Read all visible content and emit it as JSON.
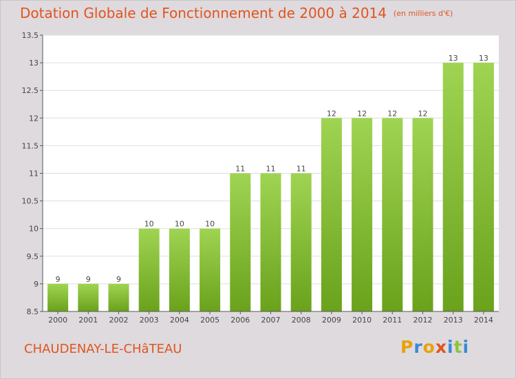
{
  "header": {
    "title": "Dotation Globale de Fonctionnement de 2000 à 2014",
    "unit": "(en milliers d'€)"
  },
  "commune": "CHAUDENAY-LE-CHâTEAU",
  "logo": {
    "letters": [
      "P",
      "r",
      "o",
      "x",
      "i",
      "t",
      "i"
    ],
    "colors": [
      "#e8a20a",
      "#3a8ad4",
      "#e8a20a",
      "#e0541f",
      "#3a8ad4",
      "#8cc43c",
      "#3a8ad4"
    ]
  },
  "colors": {
    "accent": "#e0541f",
    "bar_top": "#9fd452",
    "bar_bottom": "#6aa21c",
    "plot_bg": "#ffffff",
    "grid": "#dddddd"
  },
  "chart_data": {
    "type": "bar",
    "categories": [
      "2000",
      "2001",
      "2002",
      "2003",
      "2004",
      "2005",
      "2006",
      "2007",
      "2008",
      "2009",
      "2010",
      "2011",
      "2012",
      "2013",
      "2014"
    ],
    "values": [
      9,
      9,
      9,
      10,
      10,
      10,
      11,
      11,
      11,
      12,
      12,
      12,
      12,
      13,
      13
    ],
    "data_labels": [
      "9",
      "9",
      "9",
      "10",
      "10",
      "10",
      "11",
      "11",
      "11",
      "12",
      "12",
      "12",
      "12",
      "13",
      "13"
    ],
    "y_ticks": [
      "8.5",
      "9",
      "9.5",
      "10",
      "10.5",
      "11",
      "11.5",
      "12",
      "12.5",
      "13",
      "13.5"
    ],
    "ylim": [
      8.5,
      13.5
    ],
    "grid": true,
    "legend": "none"
  }
}
